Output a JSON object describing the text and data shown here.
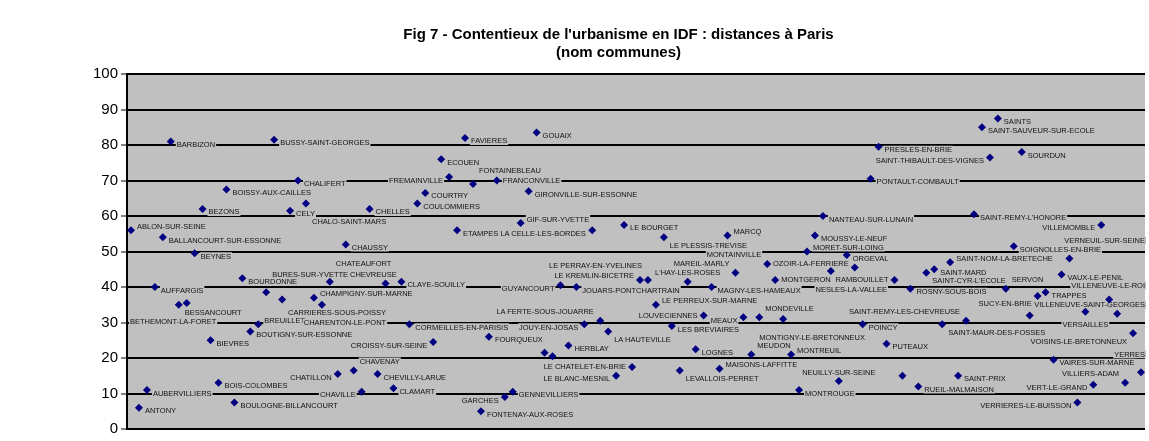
{
  "chart_data": {
    "type": "scatter",
    "title": "Fig 7 - Contentieux de l'urbanisme en IDF : distances à Paris",
    "subtitle": "(nom communes)",
    "categories": [
      null,
      null,
      null,
      null,
      null,
      null,
      null,
      null,
      null,
      null,
      null,
      null,
      null,
      null,
      null,
      null,
      null,
      null,
      null,
      null,
      null,
      null,
      null,
      null,
      null,
      null,
      null,
      null,
      null,
      null,
      null,
      null,
      null,
      null,
      null,
      null,
      null,
      null,
      null,
      null,
      null,
      null,
      null,
      null,
      null,
      null,
      null,
      null,
      null,
      null,
      null,
      null,
      null,
      null,
      null,
      null,
      null,
      null,
      null,
      null,
      null,
      null,
      null,
      null,
      null,
      null,
      null,
      null,
      null,
      null,
      null,
      null,
      null,
      null,
      null,
      null,
      null,
      null,
      null,
      null,
      null,
      null,
      null,
      null,
      null,
      null,
      null,
      null,
      null,
      null,
      null,
      null,
      null,
      null,
      null,
      null,
      null,
      null,
      null,
      null,
      null,
      null,
      null,
      null,
      null,
      null,
      null,
      null,
      null,
      null,
      null,
      null,
      null,
      null,
      null,
      null,
      null,
      null,
      null,
      null,
      null,
      null,
      null,
      null,
      null,
      null,
      null,
      null
    ],
    "series": [
      {
        "color": "#000080",
        "values": [
          56,
          6,
          11,
          40,
          54,
          81,
          35,
          35.5,
          49.5,
          62,
          25,
          13,
          67.5,
          7.5,
          42.5,
          27.5,
          29.5,
          38.5,
          81.5,
          36.5,
          61.5,
          70,
          63.5,
          37,
          35,
          41.5,
          15.5,
          52,
          16.5,
          10.5,
          62,
          15.5,
          41,
          11.5,
          41.5,
          29.5,
          63.5,
          66.5,
          24.5,
          76,
          71,
          56,
          82,
          69,
          5,
          26,
          70,
          9,
          10.5,
          58,
          67,
          83.5,
          21.5,
          20.5,
          40.5,
          23.5,
          40,
          29.5,
          56,
          30.5,
          27.5,
          15,
          57.5,
          17.5,
          42,
          42,
          35,
          54,
          29,
          16.5,
          41.5,
          22.5,
          32,
          40,
          17,
          54.5,
          44,
          31.5,
          21,
          31.5,
          46.5,
          42,
          31,
          21,
          11,
          50,
          54.5,
          60,
          44.5,
          13.5,
          49,
          45.5,
          29.5,
          70.5,
          79.5,
          24,
          42,
          15,
          39.5,
          12,
          44,
          45,
          29.5,
          47,
          15,
          30.5,
          60.5,
          85,
          76.5,
          87.5,
          39.5,
          51.5,
          78,
          32,
          37.5,
          38.5,
          19.5,
          43.5,
          48,
          7.5,
          33,
          12.5,
          57.5,
          36.5,
          32.5,
          13,
          27,
          16
        ],
        "value_labels": [
          "ABLON-SUR-SEINE",
          "ANTONY",
          "AUBERVILLIERS",
          "AUFFARGIS",
          "BALLANCOURT-SUR-ESSONNE",
          "BARBIZON",
          "BESSANCOURT",
          "BETHEMONT-LA-FORET",
          "BEYNES",
          "BEZONS",
          "BIEVRES",
          "BOIS-COLOMBES",
          "BOISSY-AUX-CAILLES",
          "BOULOGNE-BILLANCOURT",
          "BOURDONNE",
          "BOUTIGNY-SUR-ESSONNE",
          "BREUILLET",
          "BURES-SUR-YVETTE",
          "BUSSY-SAINT-GEORGES",
          "CARRIERES-SOUS-POISSY",
          "CELY",
          "CHALIFERT",
          "CHALO-SAINT-MARS",
          "CHAMPIGNY-SUR-MARNE",
          "CHARENTON-LE-PONT",
          "CHATEAUFORT",
          "CHATILLON",
          "CHAUSSY",
          "CHAVENAY",
          "CHAVILLE",
          "CHELLES",
          "CHEVILLY-LARUE",
          "CHEVREUSE",
          "CLAMART",
          "CLAYE-SOUILLY",
          "CORMEILLES-EN-PARISIS",
          "COULOMMIERS",
          "COURTRY",
          "CROISSY-SUR-SEINE",
          "ECOUEN",
          "FREMAINVILLE",
          "ETAMPES",
          "FAVIERES",
          "FONTAINEBLEAU",
          "FONTENAY-AUX-ROSES",
          "FOURQUEUX",
          "FRANCONVILLE",
          "GARCHES",
          "GENNEVILLIERS",
          "GIF-SUR-YVETTE",
          "GIRONVILLE-SUR-ESSONNE",
          "GOUAIX",
          null,
          null,
          "GUYANCOURT",
          "HERBLAY",
          "JOUARS-PONTCHARTRAIN",
          "JOUY-EN-JOSAS",
          "LA CELLE-LES-BORDES",
          "LA FERTE-SOUS-JOUARRE",
          "LA HAUTEVILLE",
          "LE BLANC-MESNIL",
          "LE BOURGET",
          "LE CHATELET-EN-BRIE",
          "LE KREMLIN-BICETRE",
          "LE PERRAY-EN-YVELINES",
          "LE PERREUX-SUR-MARNE",
          "LE PLESSIS-TREVISE",
          "LES BREVIAIRES",
          "LEVALLOIS-PERRET",
          "L'HAY-LES-ROSES",
          "LOGNES",
          "LOUVECIENNES",
          "MAGNY-LES-HAMEAUX",
          "MAISONS-LAFFITTE",
          "MARCQ",
          "MAREIL-MARLY",
          "MEAUX",
          "MEUDON",
          "MONDEVILLE",
          "MONTAINVILLE",
          "MONTGERON",
          "MONTIGNY-LE-BRETONNEUX",
          "MONTREUIL",
          "MONTROUGE",
          "MORET-SUR-LOING",
          "MOUSSY-LE-NEUF",
          "NANTEAU-SUR-LUNAIN",
          "NESLES-LA-VALLEE",
          "NEUILLY-SUR-SEINE",
          "ORGEVAL",
          "OZOIR-LA-FERRIERE",
          "POINCY",
          "PONTAULT-COMBAULT",
          "PRESLES-EN-BRIE",
          "PUTEAUX",
          "RAMBOUILLET",
          null,
          "ROSNY-SOUS-BOIS",
          "RUEIL-MALMAISON",
          "SAINT-CYR-L'ECOLE",
          "SAINT-MARD",
          "SAINT-MAUR-DES-FOSSES",
          "SAINT-NOM-LA-BRETECHE",
          "SAINT-PRIX",
          "SAINT-REMY-LES-CHEVREUSE",
          "SAINT-REMY-L'HONORE",
          "SAINT-SAUVEUR-SUR-ECOLE",
          "SAINT-THIBAULT-DES-VIGNES",
          "SAINTS",
          "SERVON",
          "SOIGNOLLES-EN-BRIE",
          "SOURDUN",
          null,
          "SUCY-EN-BRIE",
          "TRAPPES",
          "VAIRES-SUR-MARNE",
          "VAUX-LE-PENIL",
          "VERNEUIL-SUR-SEINE",
          "VERRIERES-LE-BUISSON",
          "VERSAILLES",
          "VERT-LE-GRAND",
          "VILLEMOMBLE",
          "VILLENEUVE-LE-ROI",
          "VILLENEUVE-SAINT-GEORGES",
          "VILLIERS-ADAM",
          "VOISINS-LE-BRETONNEUX",
          "YERRES"
        ]
      }
    ],
    "ylim": [
      0,
      100
    ],
    "yticks": [
      0,
      10,
      20,
      30,
      40,
      50,
      60,
      70,
      80,
      90,
      100
    ],
    "grid": "y",
    "marker": "diamond",
    "tick_labels": "y"
  }
}
